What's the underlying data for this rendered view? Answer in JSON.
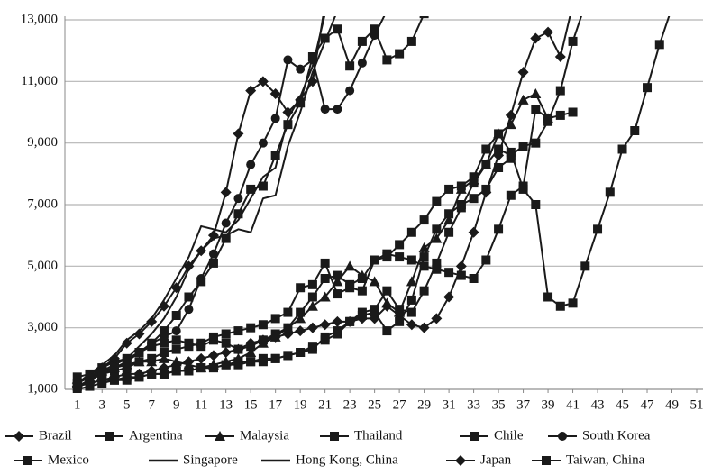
{
  "chart_data": {
    "type": "line",
    "x": [
      1,
      2,
      3,
      4,
      5,
      6,
      7,
      8,
      9,
      10,
      11,
      12,
      13,
      14,
      15,
      16,
      17,
      18,
      19,
      20,
      21,
      22,
      23,
      24,
      25,
      26,
      27,
      28,
      29,
      30,
      31,
      32,
      33,
      34,
      35,
      36,
      37,
      38,
      39,
      40,
      41,
      42,
      43,
      44,
      45,
      46,
      47,
      48,
      49
    ],
    "xlim": [
      0,
      51
    ],
    "xticks": [
      1,
      3,
      5,
      7,
      9,
      11,
      13,
      15,
      17,
      19,
      21,
      23,
      25,
      27,
      29,
      31,
      33,
      35,
      37,
      39,
      41,
      43,
      45,
      47,
      49,
      51
    ],
    "ylim": [
      1000,
      13000
    ],
    "yticks": [
      {
        "value": 1000,
        "label": "1,000"
      },
      {
        "value": 3000,
        "label": "3,000"
      },
      {
        "value": 5000,
        "label": "5,000"
      },
      {
        "value": 7000,
        "label": "7,000"
      },
      {
        "value": 9000,
        "label": "9,000"
      },
      {
        "value": 11000,
        "label": "11,000"
      },
      {
        "value": 13000,
        "label": "13,000"
      }
    ],
    "grid": true,
    "legend": "bottom",
    "series": [
      {
        "name": "Brazil",
        "color": "#1a1a1a",
        "marker": "diamond",
        "values": [
          1100,
          1200,
          1300,
          1400,
          1500,
          1500,
          1600,
          1700,
          1800,
          1900,
          2000,
          2100,
          2200,
          2300,
          2500,
          2600,
          2700,
          2800,
          2900,
          3000,
          3100,
          3200,
          3200,
          3300,
          3300,
          3700,
          3400,
          3100,
          3000,
          3300,
          4000,
          5000,
          6100,
          7400,
          8600,
          9900,
          11300,
          12400,
          12600,
          11800,
          13500,
          null,
          null,
          null,
          null,
          null,
          null,
          null,
          null
        ]
      },
      {
        "name": "Argentina",
        "color": "#1a1a1a",
        "marker": "square",
        "values": [
          1200,
          1400,
          1500,
          1600,
          1700,
          1900,
          2000,
          2200,
          2300,
          2400,
          2500,
          2700,
          2800,
          2900,
          3000,
          3100,
          3300,
          3500,
          4300,
          4400,
          5100,
          4100,
          4300,
          4200,
          5200,
          5300,
          5700,
          6100,
          6500,
          7100,
          7500,
          7600,
          7900,
          8800,
          9300,
          8700,
          7500,
          7000,
          4000,
          3700,
          3800,
          5000,
          6200,
          7400,
          8800,
          9400,
          10800,
          12200,
          13400
        ]
      },
      {
        "name": "Malaysia",
        "color": "#1a1a1a",
        "marker": "triangle",
        "values": [
          1200,
          1400,
          1600,
          1700,
          1800,
          1900,
          1900,
          2000,
          1900,
          1800,
          1700,
          1800,
          1900,
          2000,
          2200,
          2500,
          2700,
          3000,
          3300,
          3700,
          4000,
          4500,
          5000,
          4700,
          4500,
          3800,
          3500,
          4500,
          5600,
          5900,
          6500,
          7500,
          7800,
          8300,
          9300,
          9600,
          10400,
          10600,
          9800,
          null,
          null,
          null,
          null,
          null,
          null,
          null,
          null,
          null,
          null
        ]
      },
      {
        "name": "Thailand",
        "color": "#1a1a1a",
        "marker": "square",
        "values": [
          1100,
          1200,
          1300,
          1300,
          1400,
          1400,
          1500,
          1500,
          1600,
          1600,
          1700,
          1700,
          1800,
          1800,
          1900,
          1900,
          2000,
          2100,
          2200,
          2400,
          2600,
          2800,
          3200,
          3500,
          3600,
          4200,
          3600,
          3500,
          4200,
          5100,
          6100,
          6900,
          7700,
          8300,
          8800,
          8600,
          8900,
          9000,
          9700,
          10700,
          12300,
          13500,
          null,
          null,
          null,
          null,
          null,
          null,
          null
        ]
      },
      {
        "name": "Chile",
        "color": "#1a1a1a",
        "marker": "square",
        "values": [
          1400,
          1500,
          1700,
          1900,
          2000,
          2200,
          2400,
          2500,
          2600,
          2500,
          2400,
          2600,
          2500,
          2300,
          2400,
          2600,
          2800,
          3000,
          3500,
          4000,
          4600,
          4700,
          4400,
          4600,
          5200,
          5400,
          5300,
          5200,
          5000,
          4900,
          4800,
          4700,
          4600,
          5200,
          6200,
          7300,
          7600,
          10100,
          9800,
          9900,
          10000,
          null,
          null,
          null,
          null,
          null,
          null,
          null,
          null
        ]
      },
      {
        "name": "South Korea",
        "color": "#1a1a1a",
        "marker": "circle",
        "values": [
          1100,
          1300,
          1500,
          1700,
          1900,
          2200,
          2500,
          2700,
          2900,
          3600,
          4600,
          5400,
          6400,
          7200,
          8300,
          9000,
          9800,
          11700,
          11400,
          11700,
          10100,
          10100,
          10700,
          11600,
          12500,
          13300,
          null,
          null,
          null,
          null,
          null,
          null,
          null,
          null,
          null,
          null,
          null,
          null,
          null,
          null,
          null,
          null,
          null,
          null,
          null,
          null,
          null,
          null,
          null
        ]
      },
      {
        "name": "Mexico",
        "color": "#1a1a1a",
        "marker": "square",
        "values": [
          1000,
          1100,
          1200,
          1300,
          1300,
          1400,
          1500,
          1500,
          1600,
          1600,
          1700,
          1700,
          1800,
          1900,
          1900,
          2000,
          2000,
          2100,
          2200,
          2300,
          2700,
          2900,
          3200,
          3400,
          3500,
          2900,
          3200,
          3900,
          5300,
          6200,
          6700,
          7000,
          7200,
          7500,
          8200,
          8500,
          null,
          null,
          null,
          null,
          null,
          null,
          null,
          null,
          null,
          null,
          null,
          null,
          null
        ]
      },
      {
        "name": "Singapore",
        "color": "#1a1a1a",
        "marker": "none",
        "values": [
          1200,
          1400,
          1600,
          1800,
          2000,
          2400,
          2800,
          3300,
          4000,
          4900,
          5500,
          5900,
          6000,
          6200,
          6100,
          7200,
          7300,
          8900,
          10000,
          11300,
          12300,
          13300,
          null,
          null,
          null,
          null,
          null,
          null,
          null,
          null,
          null,
          null,
          null,
          null,
          null,
          null,
          null,
          null,
          null,
          null,
          null,
          null,
          null,
          null,
          null,
          null,
          null,
          null,
          null
        ]
      },
      {
        "name": "Hong Kong, China",
        "color": "#1a1a1a",
        "marker": "none",
        "values": [
          1200,
          1500,
          1800,
          2100,
          2600,
          2900,
          3300,
          3900,
          4600,
          5300,
          6300,
          6200,
          6100,
          6500,
          7200,
          7900,
          8200,
          9800,
          10500,
          11500,
          13200,
          null,
          null,
          null,
          null,
          null,
          null,
          null,
          null,
          null,
          null,
          null,
          null,
          null,
          null,
          null,
          null,
          null,
          null,
          null,
          null,
          null,
          null,
          null,
          null,
          null,
          null,
          null,
          null
        ]
      },
      {
        "name": "Japan",
        "color": "#1a1a1a",
        "marker": "diamond",
        "values": [
          1200,
          1400,
          1700,
          2000,
          2500,
          2800,
          3200,
          3700,
          4300,
          5000,
          5500,
          6000,
          7400,
          9300,
          10700,
          11000,
          10600,
          10000,
          10400,
          11000,
          13500,
          null,
          null,
          null,
          null,
          null,
          null,
          null,
          null,
          null,
          null,
          null,
          null,
          null,
          null,
          null,
          null,
          null,
          null,
          null,
          null,
          null,
          null,
          null,
          null,
          null,
          null,
          null,
          null
        ]
      },
      {
        "name": "Taiwan, China",
        "color": "#1a1a1a",
        "marker": "square",
        "values": [
          1100,
          1300,
          1500,
          1700,
          1900,
          2200,
          2500,
          2900,
          3400,
          4000,
          4500,
          5100,
          5900,
          6700,
          7500,
          7600,
          8600,
          9600,
          10300,
          11800,
          12400,
          12700,
          11500,
          12300,
          12700,
          11700,
          11900,
          12300,
          13200,
          null,
          null,
          null,
          null,
          null,
          null,
          null,
          null,
          null,
          null,
          null,
          null,
          null,
          null,
          null,
          null,
          null,
          null,
          null,
          null
        ]
      }
    ]
  }
}
